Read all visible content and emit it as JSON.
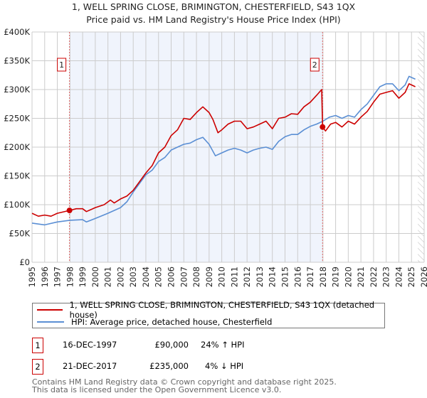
{
  "chart_data": {
    "type": "line",
    "title": "1, WELL SPRING CLOSE, BRIMINGTON, CHESTERFIELD, S43 1QX",
    "subtitle": "Price paid vs. HM Land Registry's House Price Index (HPI)",
    "xlim": [
      1995,
      2026
    ],
    "ylim": [
      0,
      400000
    ],
    "yticks": [
      {
        "v": 0,
        "label": "£0"
      },
      {
        "v": 50000,
        "label": "£50K"
      },
      {
        "v": 100000,
        "label": "£100K"
      },
      {
        "v": 150000,
        "label": "£150K"
      },
      {
        "v": 200000,
        "label": "£200K"
      },
      {
        "v": 250000,
        "label": "£250K"
      },
      {
        "v": 300000,
        "label": "£300K"
      },
      {
        "v": 350000,
        "label": "£350K"
      },
      {
        "v": 400000,
        "label": "£400K"
      }
    ],
    "xticks": [
      "1995",
      "1996",
      "1997",
      "1998",
      "1999",
      "2000",
      "2001",
      "2002",
      "2003",
      "2004",
      "2005",
      "2006",
      "2007",
      "2008",
      "2009",
      "2010",
      "2011",
      "2012",
      "2013",
      "2014",
      "2015",
      "2016",
      "2017",
      "2018",
      "2019",
      "2020",
      "2021",
      "2022",
      "2023",
      "2024",
      "2025",
      "2026"
    ],
    "grid": true,
    "shaded_range": [
      1997.96,
      2017.97
    ],
    "hatched_from": 2025.5,
    "series": [
      {
        "name": "1, WELL SPRING CLOSE, BRIMINGTON, CHESTERFIELD, S43 1QX (detached house)",
        "color": "#cc0000",
        "x": [
          1995,
          1995.5,
          1996,
          1996.5,
          1997,
          1997.96,
          1998.5,
          1999,
          1999.3,
          2000,
          2000.7,
          2001.2,
          2001.5,
          2002,
          2002.5,
          2003,
          2003.5,
          2004,
          2004.5,
          2005,
          2005.5,
          2006,
          2006.5,
          2007,
          2007.5,
          2008,
          2008.5,
          2009,
          2009.3,
          2009.7,
          2010,
          2010.5,
          2011,
          2011.5,
          2012,
          2012.5,
          2013,
          2013.5,
          2014,
          2014.5,
          2015,
          2015.5,
          2016,
          2016.5,
          2017,
          2017.5,
          2017.9,
          2017.97,
          2018.2,
          2018.6,
          2019,
          2019.5,
          2020,
          2020.5,
          2021,
          2021.5,
          2022,
          2022.5,
          2023,
          2023.5,
          2024,
          2024.5,
          2024.8,
          2025.3
        ],
        "y": [
          85000,
          80000,
          82000,
          80000,
          85000,
          90000,
          93000,
          93000,
          88000,
          95000,
          100000,
          108000,
          103000,
          110000,
          115000,
          125000,
          140000,
          155000,
          168000,
          190000,
          200000,
          220000,
          230000,
          250000,
          248000,
          260000,
          270000,
          260000,
          248000,
          225000,
          230000,
          240000,
          245000,
          245000,
          232000,
          235000,
          240000,
          245000,
          232000,
          250000,
          252000,
          258000,
          257000,
          270000,
          278000,
          290000,
          300000,
          235000,
          228000,
          240000,
          243000,
          235000,
          245000,
          240000,
          252000,
          262000,
          278000,
          292000,
          295000,
          298000,
          285000,
          295000,
          310000,
          305000
        ]
      },
      {
        "name": "HPI: Average price, detached house, Chesterfield",
        "color": "#5b8fd4",
        "x": [
          1995,
          1996,
          1997,
          1998,
          1999,
          1999.3,
          2000,
          2001,
          2001.5,
          2002,
          2002.5,
          2003,
          2003.5,
          2004,
          2004.5,
          2005,
          2005.5,
          2006,
          2006.5,
          2007,
          2007.5,
          2008,
          2008.5,
          2009,
          2009.5,
          2010,
          2010.5,
          2011,
          2011.5,
          2012,
          2012.5,
          2013,
          2013.5,
          2014,
          2014.5,
          2015,
          2015.5,
          2016,
          2016.5,
          2017,
          2017.5,
          2018,
          2018.5,
          2019,
          2019.5,
          2020,
          2020.5,
          2021,
          2021.5,
          2022,
          2022.5,
          2023,
          2023.5,
          2024,
          2024.5,
          2024.8,
          2025.3
        ],
        "y": [
          68000,
          65000,
          70000,
          73000,
          74000,
          70000,
          76000,
          85000,
          90000,
          95000,
          105000,
          122000,
          137000,
          152000,
          160000,
          175000,
          182000,
          195000,
          200000,
          205000,
          207000,
          213000,
          217000,
          205000,
          185000,
          190000,
          195000,
          198000,
          195000,
          190000,
          195000,
          198000,
          200000,
          196000,
          210000,
          218000,
          222000,
          222000,
          230000,
          236000,
          240000,
          245000,
          252000,
          255000,
          250000,
          255000,
          252000,
          265000,
          275000,
          290000,
          305000,
          310000,
          310000,
          298000,
          308000,
          323000,
          318000
        ]
      }
    ],
    "annotations": [
      {
        "label": "1",
        "x": 1997.96,
        "y": 90000
      },
      {
        "label": "2",
        "x": 2017.97,
        "y": 235000
      }
    ]
  },
  "legend": {
    "red": "1, WELL SPRING CLOSE, BRIMINGTON, CHESTERFIELD, S43 1QX (detached house)",
    "blue": "HPI: Average price, detached house, Chesterfield"
  },
  "transactions": [
    {
      "num": "1",
      "date": "16-DEC-1997",
      "price": "£90,000",
      "hpi": "24% ↑ HPI"
    },
    {
      "num": "2",
      "date": "21-DEC-2017",
      "price": "£235,000",
      "hpi": "4% ↓ HPI"
    }
  ],
  "footer": {
    "line1": "Contains HM Land Registry data © Crown copyright and database right 2025.",
    "line2": "This data is licensed under the Open Government Licence v3.0."
  }
}
